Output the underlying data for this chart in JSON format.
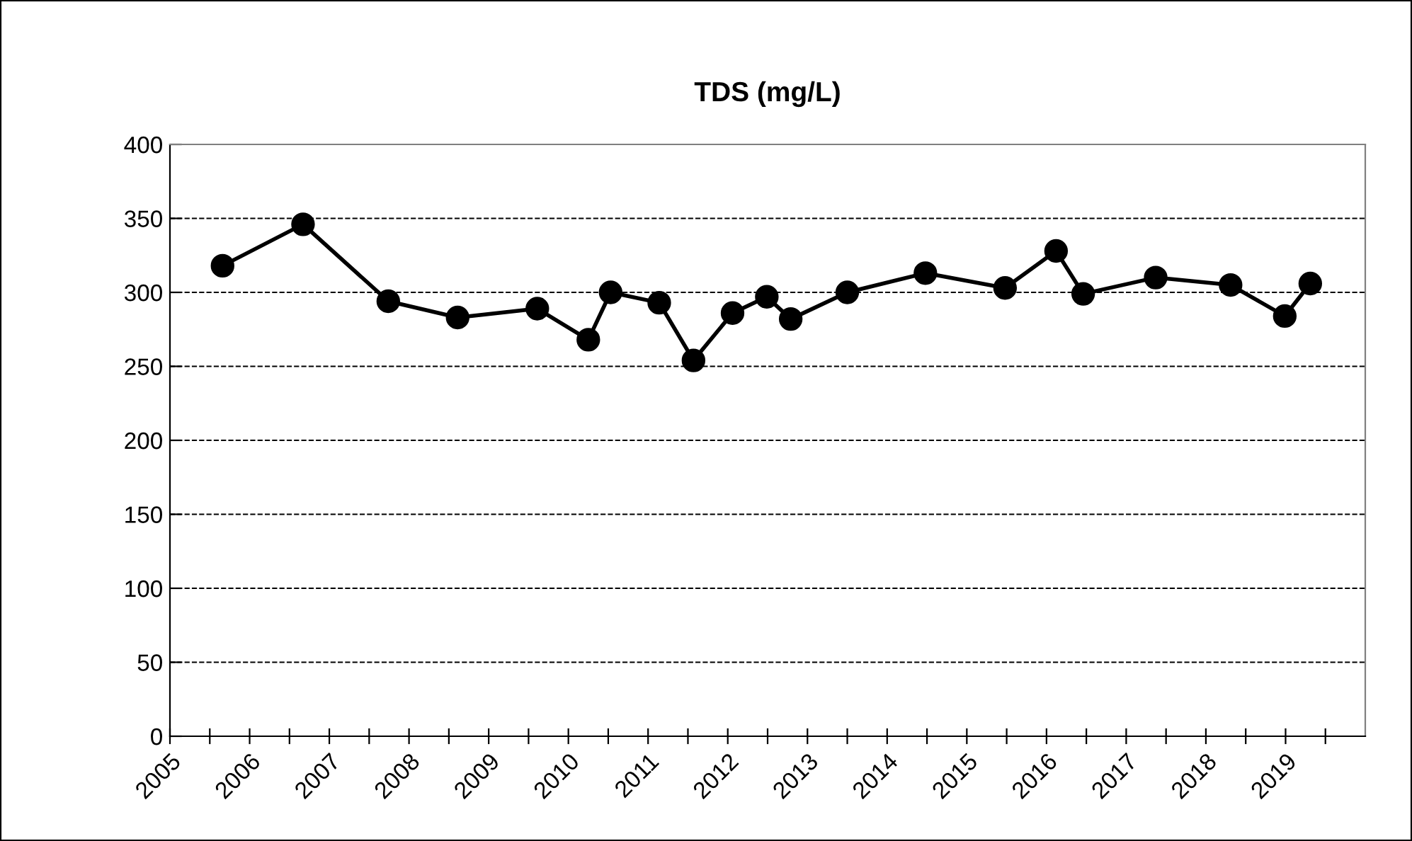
{
  "chart_data": {
    "type": "line",
    "title": "TDS (mg/L)",
    "x": [
      2005.66,
      2006.67,
      2007.74,
      2008.61,
      2009.61,
      2010.25,
      2010.53,
      2011.14,
      2011.57,
      2012.06,
      2012.49,
      2012.79,
      2013.5,
      2014.48,
      2015.48,
      2016.12,
      2016.46,
      2017.37,
      2018.31,
      2018.99,
      2019.31
    ],
    "series": [
      {
        "color": "#000000",
        "values": [
          318,
          346,
          294,
          283,
          289,
          268,
          300,
          293,
          254,
          286,
          297,
          282,
          300,
          313,
          303,
          328,
          299,
          310,
          305,
          284,
          306
        ]
      }
    ],
    "xlim": [
      2005,
      2020
    ],
    "xticks": [
      2005,
      {
        "value": 2005.5,
        "label": null
      },
      2006,
      {
        "value": 2006.5,
        "label": null
      },
      2007,
      {
        "value": 2007.5,
        "label": null
      },
      2008,
      {
        "value": 2008.5,
        "label": null
      },
      2009,
      {
        "value": 2009.5,
        "label": null
      },
      2010,
      {
        "value": 2010.5,
        "label": null
      },
      2011,
      {
        "value": 2011.5,
        "label": null
      },
      2012,
      {
        "value": 2012.5,
        "label": null
      },
      2013,
      {
        "value": 2013.5,
        "label": null
      },
      2014,
      {
        "value": 2014.5,
        "label": null
      },
      2015,
      {
        "value": 2015.5,
        "label": null
      },
      2016,
      {
        "value": 2016.5,
        "label": null
      },
      2017,
      {
        "value": 2017.5,
        "label": null
      },
      2018,
      {
        "value": 2018.5,
        "label": null
      },
      2019,
      {
        "value": 2019.5,
        "label": null
      }
    ],
    "ylim": [
      0,
      400
    ],
    "yticks": [
      0,
      50,
      100,
      150,
      200,
      250,
      300,
      350,
      400
    ],
    "grid": "y",
    "marker": "circle",
    "line_style": "solid",
    "legend": false
  }
}
